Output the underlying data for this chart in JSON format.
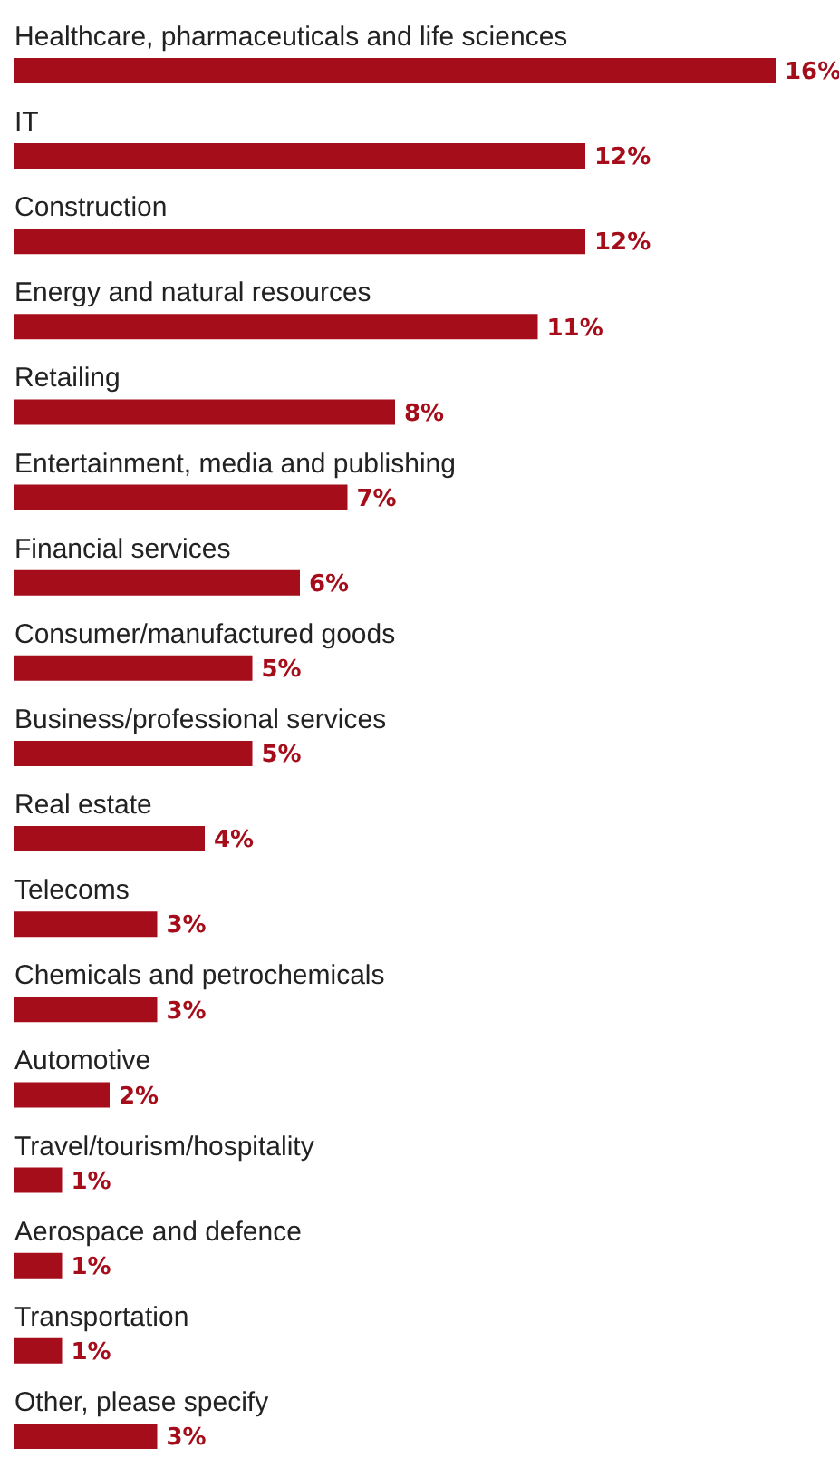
{
  "chart_data": {
    "type": "bar",
    "orientation": "horizontal",
    "categories": [
      "Healthcare, pharmaceuticals and life sciences",
      "IT",
      "Construction",
      "Energy and natural resources",
      "Retailing",
      "Entertainment, media and publishing",
      "Financial services",
      "Consumer/manufactured goods",
      "Business/professional services",
      "Real estate",
      "Telecoms",
      "Chemicals and petrochemicals",
      "Automotive",
      "Travel/tourism/hospitality",
      "Aerospace and defence",
      "Transportation",
      "Other, please specify"
    ],
    "values": [
      16,
      12,
      12,
      11,
      8,
      7,
      6,
      5,
      5,
      4,
      3,
      3,
      2,
      1,
      1,
      1,
      3
    ],
    "value_labels": [
      "16%",
      "12%",
      "12%",
      "11%",
      "8%",
      "7%",
      "6%",
      "5%",
      "5%",
      "4%",
      "3%",
      "3%",
      "2%",
      "1%",
      "1%",
      "1%",
      "3%"
    ],
    "color": "#a50d1a"
  }
}
